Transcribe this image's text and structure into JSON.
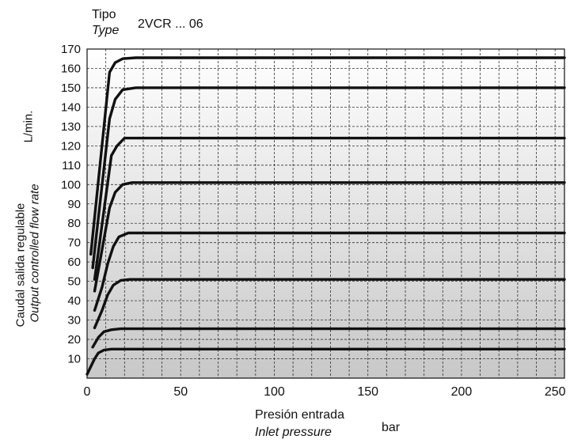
{
  "header": {
    "tipo_label": "Tipo",
    "type_label": "Type",
    "model": "2VCR ... 06"
  },
  "chart_data": {
    "type": "line",
    "y_unit": "L/min.",
    "ylabel_es": "Caudal salida regulable",
    "ylabel_en": "Output controlled flow rate",
    "xlabel_es": "Presión entrada",
    "xlabel_en": "Inlet pressure",
    "x_unit": "bar",
    "xlim": [
      0,
      255
    ],
    "ylim": [
      0,
      170
    ],
    "x_ticks": [
      0,
      50,
      100,
      150,
      200,
      250
    ],
    "y_ticks": [
      10,
      20,
      30,
      40,
      50,
      60,
      70,
      80,
      90,
      100,
      110,
      120,
      130,
      140,
      150,
      160,
      170
    ],
    "grid": true,
    "series": [
      {
        "values": [
          [
            0,
            2
          ],
          [
            4,
            10
          ],
          [
            6,
            13
          ],
          [
            9,
            14.5
          ],
          [
            13,
            15
          ],
          [
            255,
            15
          ]
        ]
      },
      {
        "values": [
          [
            3,
            16
          ],
          [
            6,
            21
          ],
          [
            9,
            24
          ],
          [
            13,
            25
          ],
          [
            18,
            25.5
          ],
          [
            255,
            25.5
          ]
        ]
      },
      {
        "values": [
          [
            4,
            26
          ],
          [
            8,
            35
          ],
          [
            11,
            43
          ],
          [
            14,
            48
          ],
          [
            18,
            50.5
          ],
          [
            23,
            51
          ],
          [
            255,
            51
          ]
        ]
      },
      {
        "values": [
          [
            4,
            35
          ],
          [
            8,
            47
          ],
          [
            11,
            59
          ],
          [
            14,
            68
          ],
          [
            17,
            73
          ],
          [
            22,
            75
          ],
          [
            255,
            75
          ]
        ]
      },
      {
        "values": [
          [
            4,
            45
          ],
          [
            12,
            88
          ],
          [
            15,
            96
          ],
          [
            19,
            100
          ],
          [
            24,
            101
          ],
          [
            255,
            101
          ]
        ]
      },
      {
        "values": [
          [
            4,
            51
          ],
          [
            13,
            115
          ],
          [
            16,
            120
          ],
          [
            20,
            124
          ],
          [
            26,
            124
          ],
          [
            255,
            124
          ]
        ]
      },
      {
        "values": [
          [
            3,
            57
          ],
          [
            12,
            134
          ],
          [
            15,
            144
          ],
          [
            19,
            149
          ],
          [
            26,
            150
          ],
          [
            255,
            150
          ]
        ]
      },
      {
        "values": [
          [
            2,
            64
          ],
          [
            12,
            158
          ],
          [
            15,
            163
          ],
          [
            19,
            165
          ],
          [
            26,
            165.5
          ],
          [
            255,
            165.5
          ]
        ]
      }
    ]
  }
}
